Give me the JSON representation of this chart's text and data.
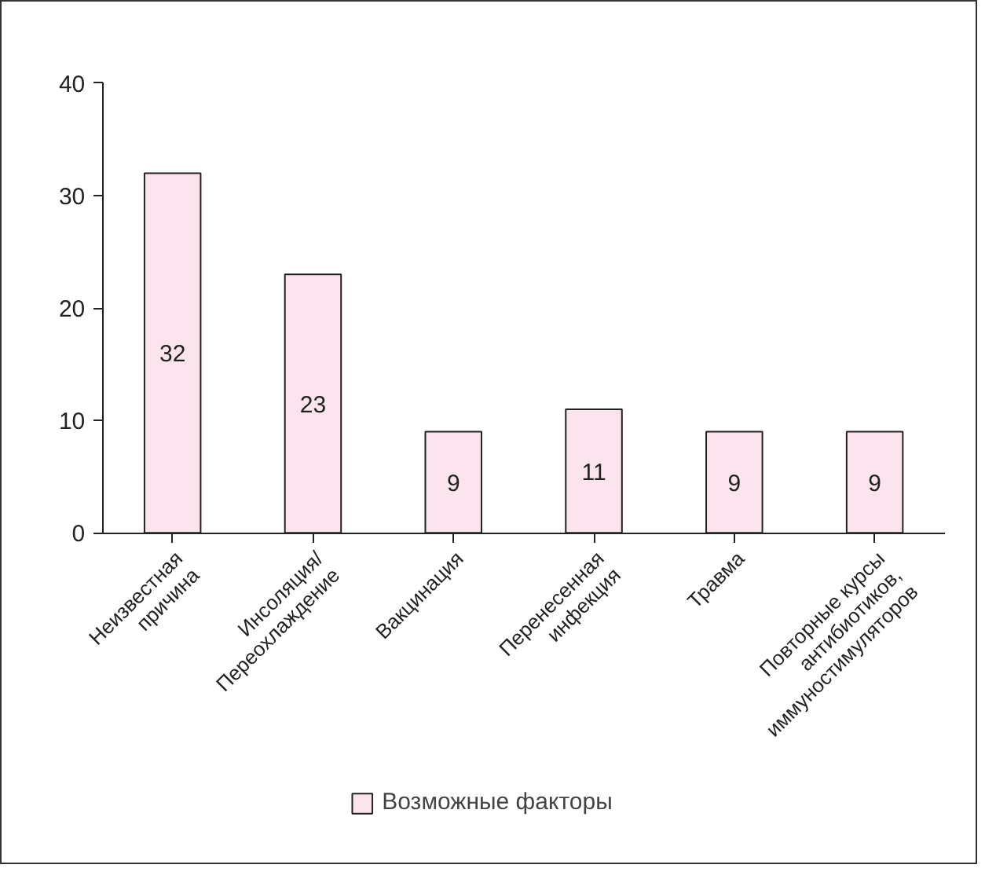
{
  "chart_data": {
    "type": "bar",
    "categories": [
      "Неизвестная\nпричина",
      "Инсоляция/\nПереохлаждение",
      "Вакцинация",
      "Перенесенная\nинфекция",
      "Травма",
      "Повторные курсы\nантибиотиков,\nиммуностимуляторов"
    ],
    "series": [
      {
        "name": "Возможные факторы",
        "color": "#fce4ef",
        "values": [
          32,
          23,
          9,
          11,
          9,
          9
        ]
      }
    ],
    "ylim": [
      0,
      40
    ],
    "yticks": [
      0,
      10,
      20,
      30,
      40
    ],
    "grid": false,
    "legend": "bottom",
    "data_labels": true
  }
}
